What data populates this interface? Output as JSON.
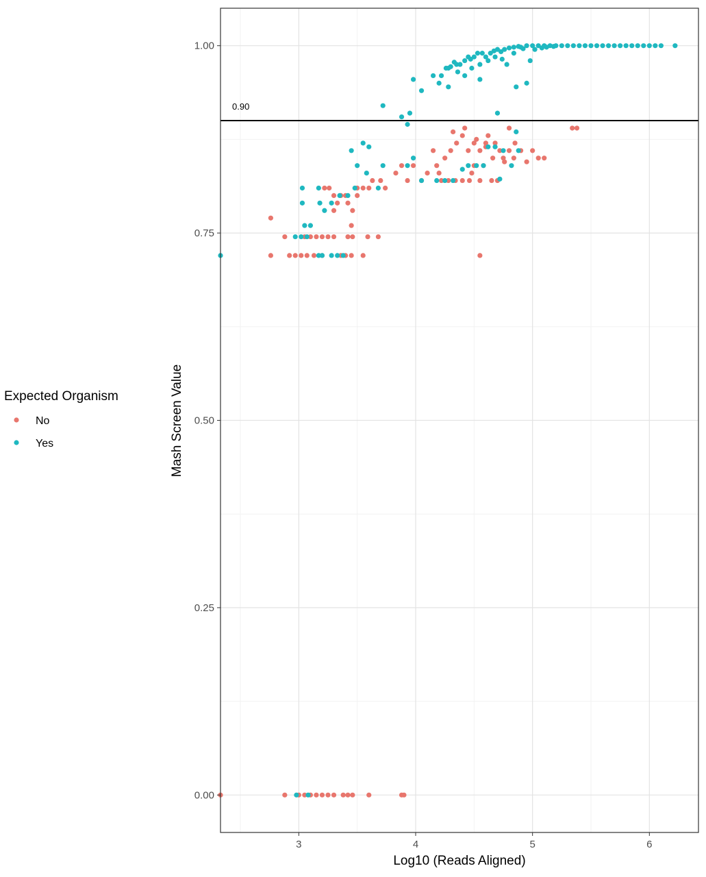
{
  "chart_data": {
    "type": "scatter",
    "title": "",
    "xlabel": "Log10 (Reads Aligned)",
    "ylabel": "Mash Screen Value",
    "xlim": [
      2.33,
      6.42
    ],
    "ylim": [
      -0.05,
      1.05
    ],
    "x_ticks": [
      3,
      4,
      5,
      6
    ],
    "x_tick_labels": [
      "3",
      "4",
      "5",
      "6"
    ],
    "y_ticks": [
      0,
      0.25,
      0.5,
      0.75,
      1.0
    ],
    "y_tick_labels": [
      "0.00",
      "0.25",
      "0.50",
      "0.75",
      "1.00"
    ],
    "grid": true,
    "legend": {
      "title": "Expected Organism",
      "position": "left",
      "entries": [
        "No",
        "Yes"
      ]
    },
    "reference_line": {
      "y": 0.9,
      "label": "0.90"
    },
    "colors": {
      "No": "#e8766d",
      "Yes": "#1fb8c0"
    },
    "series": [
      {
        "name": "No",
        "points": [
          [
            2.33,
            0.0
          ],
          [
            2.88,
            0.0
          ],
          [
            3.0,
            0.0
          ],
          [
            3.05,
            0.0
          ],
          [
            3.1,
            0.0
          ],
          [
            3.15,
            0.0
          ],
          [
            3.2,
            0.0
          ],
          [
            3.25,
            0.0
          ],
          [
            3.3,
            0.0
          ],
          [
            3.38,
            0.0
          ],
          [
            3.42,
            0.0
          ],
          [
            3.46,
            0.0
          ],
          [
            3.6,
            0.0
          ],
          [
            3.88,
            0.0
          ],
          [
            3.9,
            0.0
          ],
          [
            2.76,
            0.72
          ],
          [
            2.92,
            0.72
          ],
          [
            2.97,
            0.72
          ],
          [
            3.02,
            0.72
          ],
          [
            3.07,
            0.72
          ],
          [
            3.13,
            0.72
          ],
          [
            3.2,
            0.72
          ],
          [
            3.36,
            0.72
          ],
          [
            3.4,
            0.72
          ],
          [
            3.45,
            0.72
          ],
          [
            3.55,
            0.72
          ],
          [
            4.55,
            0.72
          ],
          [
            2.88,
            0.745
          ],
          [
            3.05,
            0.745
          ],
          [
            3.1,
            0.745
          ],
          [
            3.15,
            0.745
          ],
          [
            3.2,
            0.745
          ],
          [
            3.25,
            0.745
          ],
          [
            3.3,
            0.745
          ],
          [
            3.42,
            0.745
          ],
          [
            3.46,
            0.745
          ],
          [
            3.59,
            0.745
          ],
          [
            3.68,
            0.745
          ],
          [
            2.76,
            0.77
          ],
          [
            3.45,
            0.76
          ],
          [
            3.46,
            0.78
          ],
          [
            3.3,
            0.78
          ],
          [
            3.33,
            0.79
          ],
          [
            3.42,
            0.79
          ],
          [
            3.36,
            0.8
          ],
          [
            3.4,
            0.8
          ],
          [
            3.5,
            0.81
          ],
          [
            3.55,
            0.81
          ],
          [
            3.6,
            0.81
          ],
          [
            3.63,
            0.82
          ],
          [
            3.22,
            0.81
          ],
          [
            3.26,
            0.81
          ],
          [
            3.3,
            0.8
          ],
          [
            3.5,
            0.8
          ],
          [
            3.74,
            0.81
          ],
          [
            3.7,
            0.82
          ],
          [
            3.83,
            0.83
          ],
          [
            3.88,
            0.84
          ],
          [
            3.93,
            0.82
          ],
          [
            3.98,
            0.84
          ],
          [
            4.05,
            0.82
          ],
          [
            4.1,
            0.83
          ],
          [
            4.15,
            0.86
          ],
          [
            4.18,
            0.84
          ],
          [
            4.22,
            0.82
          ],
          [
            4.28,
            0.82
          ],
          [
            4.34,
            0.82
          ],
          [
            4.4,
            0.82
          ],
          [
            4.46,
            0.82
          ],
          [
            4.5,
            0.84
          ],
          [
            4.55,
            0.82
          ],
          [
            4.65,
            0.82
          ],
          [
            4.7,
            0.82
          ],
          [
            4.25,
            0.85
          ],
          [
            4.3,
            0.86
          ],
          [
            4.35,
            0.87
          ],
          [
            4.4,
            0.88
          ],
          [
            4.45,
            0.86
          ],
          [
            4.5,
            0.87
          ],
          [
            4.55,
            0.86
          ],
          [
            4.6,
            0.87
          ],
          [
            4.62,
            0.88
          ],
          [
            4.68,
            0.87
          ],
          [
            4.72,
            0.86
          ],
          [
            4.32,
            0.885
          ],
          [
            4.42,
            0.89
          ],
          [
            4.52,
            0.875
          ],
          [
            4.6,
            0.865
          ],
          [
            4.66,
            0.85
          ],
          [
            4.75,
            0.85
          ],
          [
            4.8,
            0.86
          ],
          [
            4.84,
            0.85
          ],
          [
            4.9,
            0.86
          ],
          [
            4.95,
            0.845
          ],
          [
            5.05,
            0.85
          ],
          [
            5.1,
            0.85
          ],
          [
            4.8,
            0.89
          ],
          [
            4.85,
            0.87
          ],
          [
            4.2,
            0.83
          ],
          [
            4.48,
            0.83
          ],
          [
            4.58,
            0.84
          ],
          [
            4.76,
            0.845
          ],
          [
            5.0,
            0.86
          ],
          [
            5.34,
            0.89
          ],
          [
            5.38,
            0.89
          ]
        ]
      },
      {
        "name": "Yes",
        "points": [
          [
            2.33,
            0.72
          ],
          [
            2.98,
            0.0
          ],
          [
            3.08,
            0.0
          ],
          [
            2.97,
            0.745
          ],
          [
            3.02,
            0.745
          ],
          [
            3.07,
            0.745
          ],
          [
            3.17,
            0.72
          ],
          [
            3.2,
            0.72
          ],
          [
            3.28,
            0.72
          ],
          [
            3.33,
            0.72
          ],
          [
            3.38,
            0.72
          ],
          [
            3.05,
            0.76
          ],
          [
            3.1,
            0.76
          ],
          [
            3.03,
            0.79
          ],
          [
            3.18,
            0.79
          ],
          [
            3.22,
            0.78
          ],
          [
            3.28,
            0.79
          ],
          [
            3.35,
            0.8
          ],
          [
            3.42,
            0.8
          ],
          [
            3.48,
            0.81
          ],
          [
            3.03,
            0.81
          ],
          [
            3.17,
            0.81
          ],
          [
            3.5,
            0.84
          ],
          [
            3.45,
            0.86
          ],
          [
            3.55,
            0.87
          ],
          [
            3.6,
            0.865
          ],
          [
            3.58,
            0.83
          ],
          [
            3.68,
            0.81
          ],
          [
            3.72,
            0.84
          ],
          [
            3.93,
            0.84
          ],
          [
            3.98,
            0.85
          ],
          [
            4.05,
            0.82
          ],
          [
            4.18,
            0.82
          ],
          [
            4.25,
            0.82
          ],
          [
            4.32,
            0.82
          ],
          [
            4.4,
            0.835
          ],
          [
            4.45,
            0.84
          ],
          [
            4.52,
            0.84
          ],
          [
            4.58,
            0.84
          ],
          [
            4.62,
            0.865
          ],
          [
            4.68,
            0.865
          ],
          [
            4.75,
            0.86
          ],
          [
            4.82,
            0.84
          ],
          [
            4.88,
            0.86
          ],
          [
            4.86,
            0.885
          ],
          [
            4.72,
            0.822
          ],
          [
            3.72,
            0.92
          ],
          [
            3.88,
            0.905
          ],
          [
            3.93,
            0.895
          ],
          [
            3.95,
            0.91
          ],
          [
            4.05,
            0.94
          ],
          [
            4.15,
            0.96
          ],
          [
            4.2,
            0.95
          ],
          [
            4.28,
            0.945
          ],
          [
            3.98,
            0.955
          ],
          [
            4.28,
            0.97
          ],
          [
            4.35,
            0.975
          ],
          [
            4.45,
            0.985
          ],
          [
            4.55,
            0.955
          ],
          [
            4.7,
            0.91
          ],
          [
            4.86,
            0.945
          ],
          [
            4.95,
            0.95
          ],
          [
            4.98,
            0.98
          ],
          [
            4.22,
            0.96
          ],
          [
            4.26,
            0.97
          ],
          [
            4.3,
            0.972
          ],
          [
            4.33,
            0.978
          ],
          [
            4.38,
            0.975
          ],
          [
            4.42,
            0.98
          ],
          [
            4.47,
            0.982
          ],
          [
            4.5,
            0.985
          ],
          [
            4.53,
            0.99
          ],
          [
            4.57,
            0.99
          ],
          [
            4.6,
            0.985
          ],
          [
            4.64,
            0.99
          ],
          [
            4.67,
            0.993
          ],
          [
            4.7,
            0.995
          ],
          [
            4.73,
            0.992
          ],
          [
            4.76,
            0.995
          ],
          [
            4.8,
            0.997
          ],
          [
            4.84,
            0.998
          ],
          [
            4.88,
            0.999
          ],
          [
            4.36,
            0.965
          ],
          [
            4.42,
            0.96
          ],
          [
            4.48,
            0.97
          ],
          [
            4.55,
            0.975
          ],
          [
            4.62,
            0.98
          ],
          [
            4.68,
            0.985
          ],
          [
            4.74,
            0.982
          ],
          [
            4.78,
            0.975
          ],
          [
            4.84,
            0.99
          ],
          [
            4.9,
            0.998
          ],
          [
            4.95,
            1.0
          ],
          [
            5.0,
            1.0
          ],
          [
            5.05,
            1.0
          ],
          [
            5.1,
            1.0
          ],
          [
            5.15,
            1.0
          ],
          [
            5.2,
            1.0
          ],
          [
            5.25,
            1.0
          ],
          [
            5.3,
            1.0
          ],
          [
            5.35,
            1.0
          ],
          [
            5.4,
            1.0
          ],
          [
            5.45,
            1.0
          ],
          [
            5.5,
            1.0
          ],
          [
            5.55,
            1.0
          ],
          [
            5.6,
            1.0
          ],
          [
            5.65,
            1.0
          ],
          [
            5.7,
            1.0
          ],
          [
            5.75,
            1.0
          ],
          [
            5.8,
            1.0
          ],
          [
            5.85,
            1.0
          ],
          [
            5.9,
            1.0
          ],
          [
            5.95,
            1.0
          ],
          [
            6.0,
            1.0
          ],
          [
            6.05,
            1.0
          ],
          [
            6.1,
            1.0
          ],
          [
            6.22,
            1.0
          ],
          [
            4.92,
            0.996
          ],
          [
            5.02,
            0.995
          ],
          [
            5.08,
            0.997
          ],
          [
            5.12,
            0.998
          ],
          [
            5.18,
            0.999
          ]
        ]
      }
    ]
  }
}
